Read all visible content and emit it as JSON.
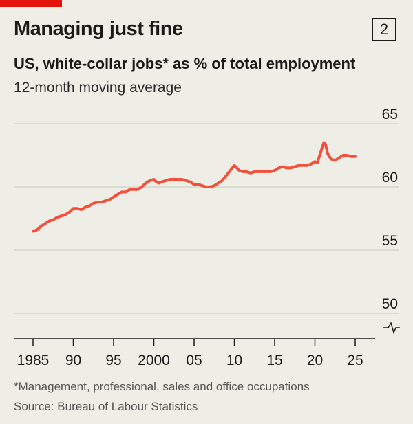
{
  "header": {
    "title": "Managing just fine",
    "chart_number": "2",
    "subtitle": "US, white-collar jobs* as % of total employment",
    "subtitle2": "12-month moving average"
  },
  "footer": {
    "footnote": "*Management, professional, sales and office occupations",
    "source": "Source: Bureau of Labour Statistics"
  },
  "colors": {
    "line": "#f2503a",
    "brand_red": "#e3120b",
    "grid": "#c9c8bf",
    "axis": "#1a1a1a",
    "background": "#efeee6"
  },
  "chart_data": {
    "type": "line",
    "title": "Managing just fine",
    "subtitle": "US, white-collar jobs* as % of total employment",
    "ylim": [
      50,
      65
    ],
    "xlim": [
      1985,
      2025
    ],
    "y_ticks": [
      50,
      55,
      60,
      65
    ],
    "y_tick_labels": [
      "50",
      "55",
      "60",
      "65"
    ],
    "x_ticks": [
      1985,
      1990,
      1995,
      2000,
      2005,
      2010,
      2015,
      2020,
      2025
    ],
    "x_tick_labels": [
      "1985",
      "90",
      "95",
      "2000",
      "05",
      "10",
      "15",
      "20",
      "25"
    ],
    "y_axis_break": true,
    "grid": true,
    "series": [
      {
        "x": [
          1985.0,
          1985.5,
          1986.0,
          1986.5,
          1987.0,
          1987.5,
          1988.0,
          1988.5,
          1989.0,
          1989.5,
          1990.0,
          1990.5,
          1991.0,
          1991.5,
          1992.0,
          1992.5,
          1993.0,
          1993.5,
          1994.0,
          1994.5,
          1995.0,
          1995.5,
          1996.0,
          1996.5,
          1997.0,
          1997.5,
          1998.0,
          1998.5,
          1999.0,
          1999.5,
          2000.0,
          2000.3,
          2000.6,
          2001.0,
          2001.5,
          2002.0,
          2002.5,
          2003.0,
          2003.5,
          2004.0,
          2004.5,
          2005.0,
          2005.5,
          2006.0,
          2006.5,
          2007.0,
          2007.5,
          2008.0,
          2008.5,
          2009.0,
          2009.5,
          2010.0,
          2010.3,
          2010.6,
          2011.0,
          2011.5,
          2012.0,
          2012.5,
          2013.0,
          2013.5,
          2014.0,
          2014.5,
          2015.0,
          2015.5,
          2016.0,
          2016.5,
          2017.0,
          2017.5,
          2018.0,
          2018.5,
          2019.0,
          2019.5,
          2020.0,
          2020.3,
          2020.6,
          2020.9,
          2021.1,
          2021.3,
          2021.6,
          2022.0,
          2022.5,
          2023.0,
          2023.5,
          2024.0,
          2024.5,
          2025.0
        ],
        "y": [
          56.5,
          56.6,
          56.9,
          57.1,
          57.3,
          57.4,
          57.6,
          57.7,
          57.8,
          58.0,
          58.3,
          58.3,
          58.2,
          58.4,
          58.5,
          58.7,
          58.8,
          58.8,
          58.9,
          59.0,
          59.2,
          59.4,
          59.6,
          59.6,
          59.8,
          59.8,
          59.8,
          60.0,
          60.3,
          60.5,
          60.6,
          60.4,
          60.3,
          60.4,
          60.5,
          60.6,
          60.6,
          60.6,
          60.6,
          60.5,
          60.4,
          60.2,
          60.2,
          60.1,
          60.0,
          60.0,
          60.1,
          60.3,
          60.5,
          60.9,
          61.3,
          61.7,
          61.5,
          61.3,
          61.2,
          61.2,
          61.1,
          61.2,
          61.2,
          61.2,
          61.2,
          61.2,
          61.3,
          61.5,
          61.6,
          61.5,
          61.5,
          61.6,
          61.7,
          61.7,
          61.7,
          61.8,
          62.0,
          61.9,
          62.5,
          63.1,
          63.5,
          63.4,
          62.6,
          62.2,
          62.1,
          62.3,
          62.5,
          62.5,
          62.4,
          62.4
        ]
      }
    ]
  }
}
